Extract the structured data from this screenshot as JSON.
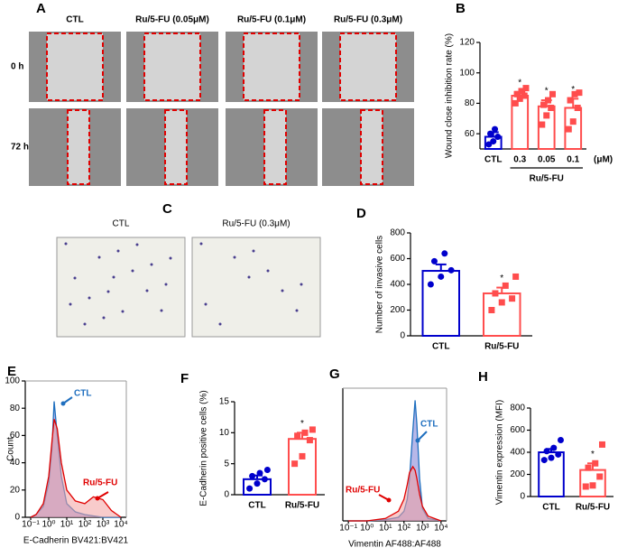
{
  "panel_a": {
    "panel": "A",
    "columns": [
      "CTL",
      "Ru/5-FU (0.05μM)",
      "Ru/5-FU (0.1μM)",
      "Ru/5-FU (0.3μM)"
    ],
    "rows": [
      "0 h",
      "72 h"
    ]
  },
  "panel_c": {
    "panel": "C",
    "columns": [
      "CTL",
      "Ru/5-FU (0.3μM)"
    ]
  },
  "chart_data": [
    {
      "panel": "B",
      "type": "bar",
      "ylabel": "Wound close inhibition rate (%)",
      "categories": [
        "CTL",
        "0.3",
        "0.05",
        "0.1"
      ],
      "x_group_label": "Ru/5-FU",
      "x_unit": "(μM)",
      "values": [
        58,
        85,
        78,
        77
      ],
      "errors": [
        3,
        2.5,
        4,
        6
      ],
      "points": [
        [
          53,
          55,
          58,
          60,
          63
        ],
        [
          80,
          83,
          85,
          86,
          88,
          90
        ],
        [
          66,
          72,
          77,
          79,
          82,
          86
        ],
        [
          63,
          68,
          77,
          82,
          86,
          87
        ]
      ],
      "colors": [
        "#0000cc",
        "#ff4d4d",
        "#ff4d4d",
        "#ff4d4d"
      ],
      "significance": [
        null,
        "*",
        "*",
        "*"
      ],
      "ylim": [
        50,
        120
      ],
      "yticks": [
        60,
        80,
        100,
        120
      ]
    },
    {
      "panel": "D",
      "type": "bar",
      "ylabel": "Number of invasive cells",
      "categories": [
        "CTL",
        "Ru/5-FU"
      ],
      "values": [
        505,
        330
      ],
      "errors": [
        50,
        45
      ],
      "points": [
        [
          400,
          460,
          510,
          580,
          640
        ],
        [
          200,
          260,
          290,
          330,
          390,
          460
        ]
      ],
      "colors": [
        "#0000cc",
        "#ff4d4d"
      ],
      "significance": [
        null,
        "*"
      ],
      "ylim": [
        0,
        800
      ],
      "yticks": [
        0,
        200,
        400,
        600,
        800
      ]
    },
    {
      "panel": "E",
      "type": "area",
      "ylabel": "Count",
      "xlabel": "E-Cadherin BV421:BV421",
      "xlog": true,
      "x": [
        0.1,
        0.2,
        0.5,
        1,
        1.5,
        2,
        3,
        5,
        10,
        30,
        100,
        300,
        1000,
        3000,
        10000
      ],
      "series": [
        {
          "name": "CTL",
          "color": "#1f6fbf",
          "fill": "#7b7bd6",
          "values": [
            0,
            2,
            8,
            25,
            50,
            85,
            60,
            30,
            10,
            4,
            2,
            1,
            0,
            0,
            0
          ]
        },
        {
          "name": "Ru/5-FU",
          "color": "#e00000",
          "fill": "#f2a0a0",
          "values": [
            0,
            2,
            10,
            30,
            55,
            72,
            65,
            40,
            20,
            12,
            10,
            15,
            13,
            5,
            0
          ]
        }
      ],
      "xlim": [
        0.05,
        20000
      ],
      "xticks": [
        {
          "value": 0.1,
          "label": "10⁻¹"
        },
        {
          "value": 1,
          "label": "10⁰"
        },
        {
          "value": 10,
          "label": "10¹"
        },
        {
          "value": 100,
          "label": "10²"
        },
        {
          "value": 1000,
          "label": "10³"
        },
        {
          "value": 10000,
          "label": "10⁴"
        }
      ],
      "ylim": [
        0,
        100
      ],
      "yticks": [
        0,
        20,
        40,
        60,
        80,
        100
      ]
    },
    {
      "panel": "F",
      "type": "bar",
      "ylabel": "E-Cadherin positive cells (%)",
      "categories": [
        "CTL",
        "Ru/5-FU"
      ],
      "values": [
        2.5,
        9
      ],
      "errors": [
        0.6,
        1
      ],
      "points": [
        [
          1,
          1.8,
          2.5,
          3,
          3.5,
          4
        ],
        [
          5,
          6.2,
          8.8,
          9.5,
          10,
          10.5
        ]
      ],
      "colors": [
        "#0000cc",
        "#ff4d4d"
      ],
      "significance": [
        null,
        "*"
      ],
      "ylim": [
        0,
        15
      ],
      "yticks": [
        0,
        5,
        10,
        15
      ]
    },
    {
      "panel": "G",
      "type": "area",
      "xlabel": "Vimentin AF488:AF488",
      "xlog": true,
      "x": [
        0.1,
        1,
        10,
        50,
        100,
        150,
        200,
        300,
        400,
        500,
        700,
        1000,
        2000,
        10000
      ],
      "series": [
        {
          "name": "CTL",
          "color": "#1f6fbf",
          "fill": "#7b7bd6",
          "values": [
            0,
            0,
            1,
            3,
            8,
            18,
            35,
            75,
            100,
            80,
            35,
            10,
            2,
            0
          ]
        },
        {
          "name": "Ru/5-FU",
          "color": "#e00000",
          "fill": "#f2a0a0",
          "values": [
            0,
            0,
            2,
            8,
            18,
            30,
            40,
            45,
            42,
            35,
            22,
            12,
            4,
            0
          ]
        }
      ],
      "xlim": [
        0.05,
        20000
      ],
      "xticks": [
        {
          "value": 0.1,
          "label": "10⁻¹"
        },
        {
          "value": 1,
          "label": "10⁰"
        },
        {
          "value": 10,
          "label": "10¹"
        },
        {
          "value": 100,
          "label": "10²"
        },
        {
          "value": 1000,
          "label": "10³"
        },
        {
          "value": 10000,
          "label": "10⁴"
        }
      ],
      "ylim": [
        0,
        110
      ]
    },
    {
      "panel": "H",
      "type": "bar",
      "ylabel": "Vimentin expression (MFI)",
      "categories": [
        "CTL",
        "Ru/5-FU"
      ],
      "values": [
        400,
        240
      ],
      "errors": [
        30,
        60
      ],
      "points": [
        [
          330,
          350,
          380,
          410,
          440,
          510
        ],
        [
          90,
          100,
          180,
          260,
          300,
          470
        ]
      ],
      "colors": [
        "#0000cc",
        "#ff4d4d"
      ],
      "significance": [
        null,
        "*"
      ],
      "ylim": [
        0,
        800
      ],
      "yticks": [
        0,
        200,
        400,
        600,
        800
      ]
    }
  ]
}
